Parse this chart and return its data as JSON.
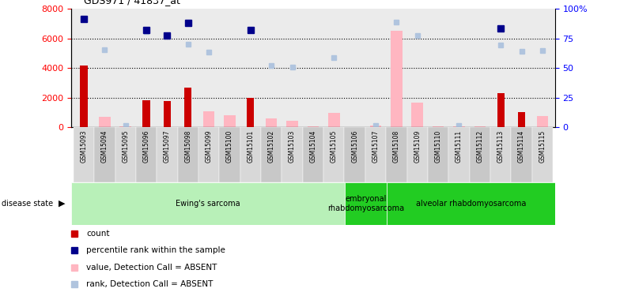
{
  "title": "GDS971 / 41837_at",
  "samples": [
    "GSM15093",
    "GSM15094",
    "GSM15095",
    "GSM15096",
    "GSM15097",
    "GSM15098",
    "GSM15099",
    "GSM15100",
    "GSM15101",
    "GSM15102",
    "GSM15103",
    "GSM15104",
    "GSM15105",
    "GSM15106",
    "GSM15107",
    "GSM15108",
    "GSM15109",
    "GSM15110",
    "GSM15111",
    "GSM15112",
    "GSM15113",
    "GSM15114",
    "GSM15115"
  ],
  "count_values": [
    4200,
    0,
    0,
    1850,
    1750,
    2700,
    0,
    0,
    2000,
    0,
    0,
    0,
    0,
    0,
    0,
    0,
    0,
    0,
    0,
    0,
    2300,
    1050,
    0
  ],
  "absent_value": [
    0,
    700,
    50,
    0,
    0,
    0,
    1100,
    800,
    0,
    600,
    450,
    80,
    1000,
    0,
    100,
    6500,
    1650,
    50,
    50,
    50,
    0,
    0,
    750
  ],
  "percentile_rank": [
    7300,
    0,
    0,
    6550,
    6200,
    7050,
    0,
    0,
    6550,
    0,
    0,
    0,
    0,
    0,
    0,
    0,
    0,
    0,
    0,
    0,
    6700,
    0,
    0
  ],
  "absent_rank": [
    0,
    5250,
    100,
    6450,
    0,
    5600,
    5100,
    0,
    0,
    4150,
    4050,
    0,
    4700,
    0,
    100,
    7100,
    6200,
    0,
    100,
    0,
    5550,
    5150,
    5200
  ],
  "disease_groups": [
    {
      "label": "Ewing's sarcoma",
      "start": 0,
      "end": 13,
      "color": "#b8f0b8"
    },
    {
      "label": "embryonal\nrhabdomyosarcoma",
      "start": 13,
      "end": 15,
      "color": "#22cc22"
    },
    {
      "label": "alveolar rhabdomyosarcoma",
      "start": 15,
      "end": 23,
      "color": "#22cc22"
    }
  ],
  "ylim_left": [
    0,
    8000
  ],
  "ylim_right": [
    0,
    100
  ],
  "yticks_left": [
    0,
    2000,
    4000,
    6000,
    8000
  ],
  "yticks_right": [
    0,
    25,
    50,
    75,
    100
  ],
  "ytick_labels_right": [
    "0",
    "25",
    "50",
    "75",
    "100%"
  ],
  "grid_values": [
    2000,
    4000,
    6000
  ],
  "count_color": "#cc0000",
  "absent_value_color": "#ffb6c1",
  "percentile_color": "#00008b",
  "absent_rank_color": "#b0c4de",
  "bg_color": "#ffffff",
  "plot_bg": "#ebebeb",
  "legend_items": [
    {
      "label": "count",
      "color": "#cc0000"
    },
    {
      "label": "percentile rank within the sample",
      "color": "#00008b"
    },
    {
      "label": "value, Detection Call = ABSENT",
      "color": "#ffb6c1"
    },
    {
      "label": "rank, Detection Call = ABSENT",
      "color": "#b0c4de"
    }
  ]
}
